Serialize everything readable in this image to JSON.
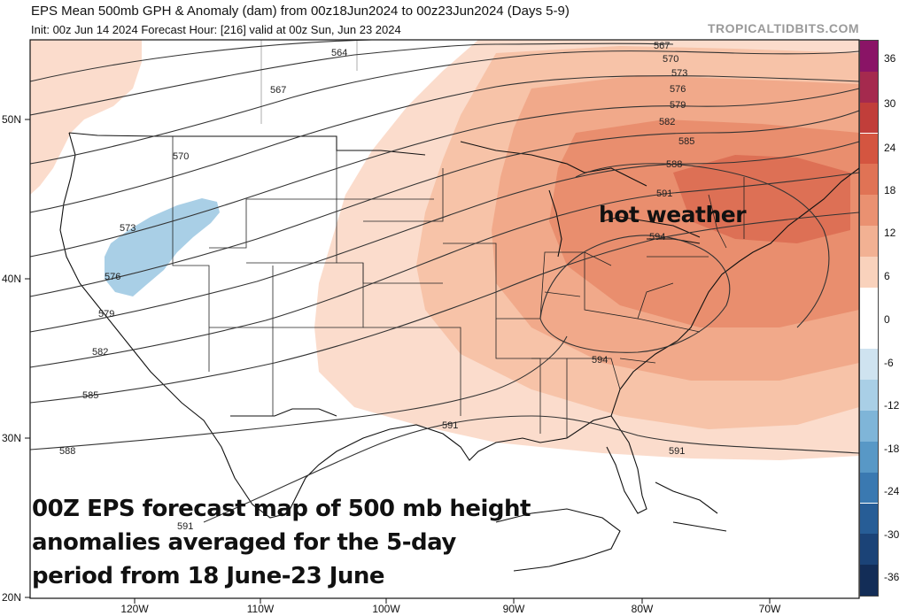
{
  "header": {
    "title": "EPS Mean 500mb GPH & Anomaly (dam) from 00z18Jun2024 to 00z23Jun2024 (Days 5-9)",
    "subtitle": "Init: 00z Jun 14 2024   Forecast Hour: [216]   valid at 00z Sun, Jun 23 2024",
    "brand": "TROPICALTIDBITS.COM"
  },
  "annotations": {
    "hot_weather": "hot weather",
    "caption_lines": [
      "00Z EPS forecast map of 500 mb height",
      "anomalies averaged for the 5-day",
      "period from 18 June-23 June"
    ]
  },
  "axes": {
    "lat_labels": [
      "50N",
      "40N",
      "30N",
      "20N"
    ],
    "lon_labels": [
      "120W",
      "110W",
      "100W",
      "90W",
      "80W",
      "70W"
    ]
  },
  "contours": {
    "labels": [
      "564",
      "567",
      "567",
      "570",
      "570",
      "573",
      "573",
      "576",
      "576",
      "579",
      "579",
      "582",
      "582",
      "585",
      "585",
      "588",
      "588",
      "591",
      "591",
      "591",
      "591",
      "594",
      "594"
    ]
  },
  "colorbar": {
    "labels": [
      "36",
      "30",
      "24",
      "18",
      "12",
      "6",
      "0",
      "-6",
      "-12",
      "-18",
      "-24",
      "-30",
      "-36"
    ],
    "colors": [
      "#8a1466",
      "#a52a4e",
      "#c13e3a",
      "#d45540",
      "#e07355",
      "#ea9171",
      "#f2b193",
      "#f9d2bc",
      "#ffffff",
      "#ffffff",
      "#cfe3f0",
      "#a9cfe6",
      "#7fb5d8",
      "#5898c6",
      "#3a79b1",
      "#275d96",
      "#1b4377",
      "#132d57"
    ]
  },
  "map_colors": {
    "background": "#ffffff",
    "anomaly_weak": "#fbdccc",
    "anomaly_light": "#f7c3a8",
    "anomaly_mid": "#f1a98a",
    "anomaly_strong": "#e98e6e",
    "anomaly_max": "#dd7055",
    "negative_anomaly": "#a9cfe6"
  }
}
